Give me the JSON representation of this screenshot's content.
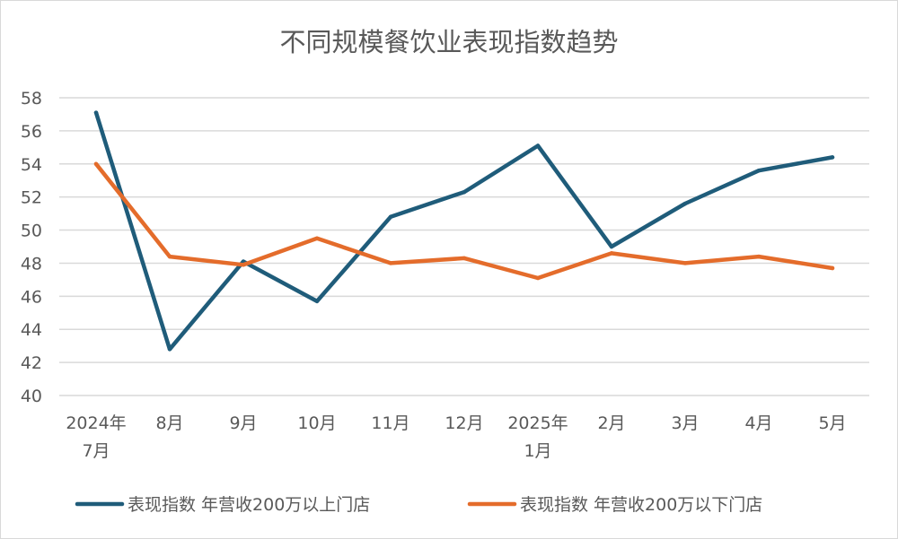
{
  "chart_data": {
    "type": "line",
    "title": "不同规模餐饮业表现指数趋势",
    "x": [
      [
        "2024年",
        "7月"
      ],
      [
        "8月"
      ],
      [
        "9月"
      ],
      [
        "10月"
      ],
      [
        "11月"
      ],
      [
        "12月"
      ],
      [
        "2025年",
        "1月"
      ],
      [
        "2月"
      ],
      [
        "3月"
      ],
      [
        "4月"
      ],
      [
        "5月"
      ]
    ],
    "ylim": [
      40,
      58
    ],
    "yticks": [
      40,
      42,
      44,
      46,
      48,
      50,
      52,
      54,
      56,
      58
    ],
    "grid": true,
    "legend_position": "bottom",
    "series": [
      {
        "name": "表现指数 年营收200万以上门店",
        "color": "#1f5c7a",
        "values": [
          57.1,
          42.8,
          48.1,
          45.7,
          50.8,
          52.3,
          55.1,
          49.0,
          51.6,
          53.6,
          54.4
        ]
      },
      {
        "name": "表现指数 年营收200万以下门店",
        "color": "#e46c2b",
        "values": [
          54.0,
          48.4,
          47.9,
          49.5,
          48.0,
          48.3,
          47.1,
          48.6,
          48.0,
          48.4,
          47.7
        ]
      }
    ]
  }
}
